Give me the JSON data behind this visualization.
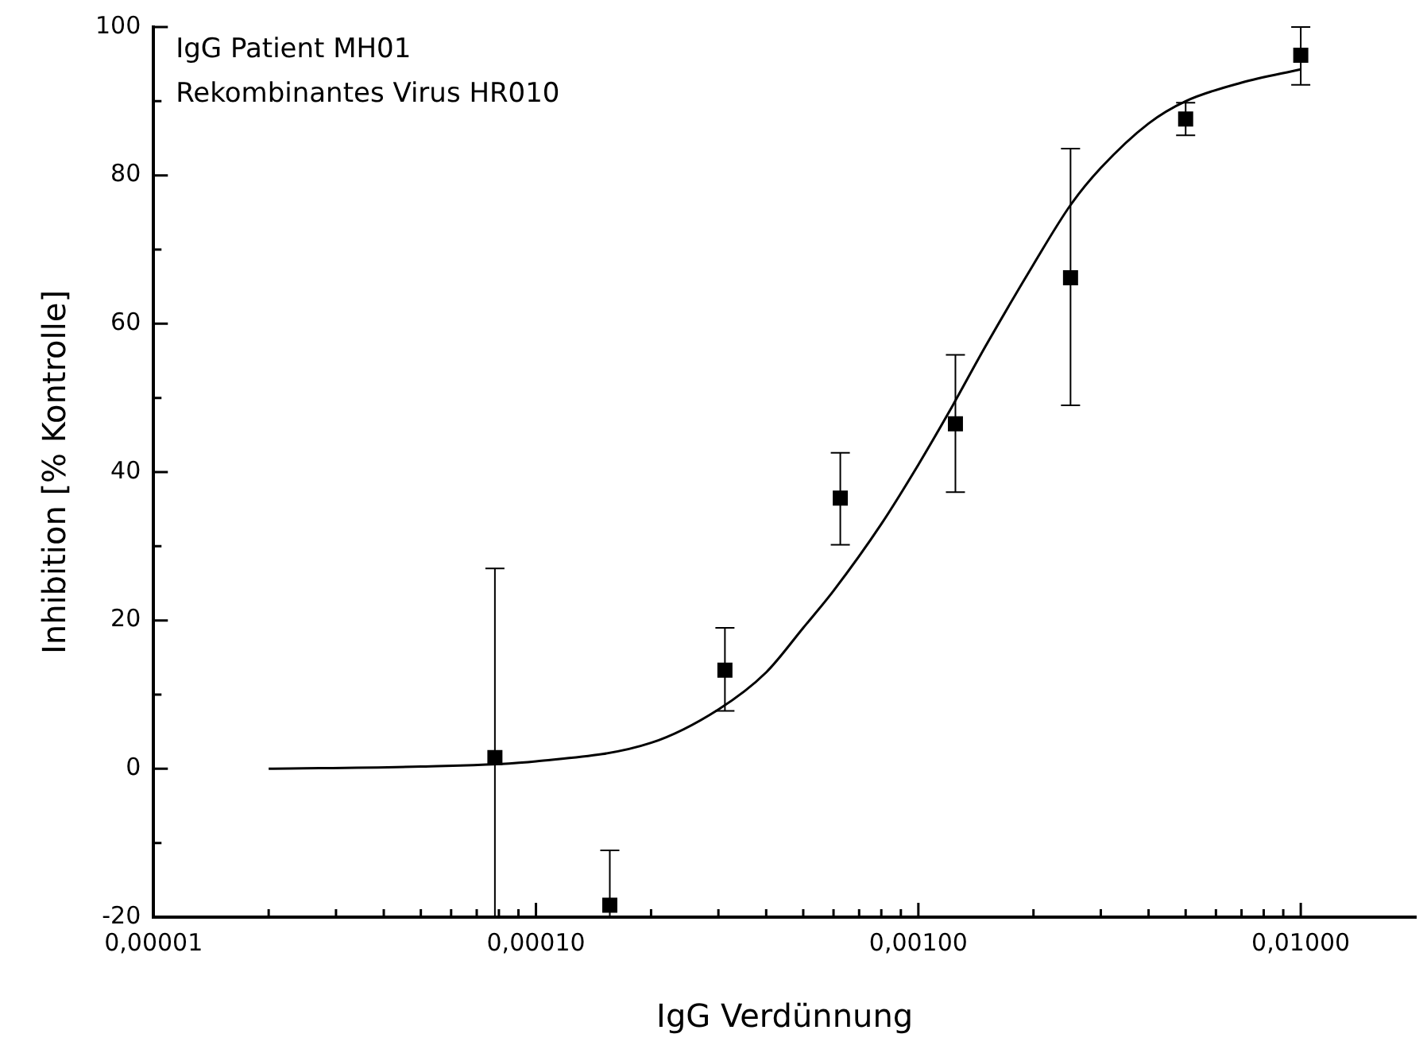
{
  "chart_data": {
    "type": "scatter",
    "xlabel": "IgG Verdünnung",
    "ylabel": "Inhibition [% Kontrolle]",
    "annotations": [
      "IgG Patient MH01",
      "Rekombinantes Virus HR010"
    ],
    "log": "x",
    "grid": false,
    "legend": false,
    "marker": "square",
    "xlim": [
      1e-05,
      0.02
    ],
    "ylim": [
      -20,
      100
    ],
    "xticks": [
      {
        "value": 1e-05,
        "label": "0,00001"
      },
      {
        "value": 2e-05,
        "label": null
      },
      {
        "value": 3e-05,
        "label": null
      },
      {
        "value": 4e-05,
        "label": null
      },
      {
        "value": 5e-05,
        "label": null
      },
      {
        "value": 6e-05,
        "label": null
      },
      {
        "value": 7e-05,
        "label": null
      },
      {
        "value": 8e-05,
        "label": null
      },
      {
        "value": 9e-05,
        "label": null
      },
      {
        "value": 0.0001,
        "label": "0,00010"
      },
      {
        "value": 0.0002,
        "label": null
      },
      {
        "value": 0.0003,
        "label": null
      },
      {
        "value": 0.0004,
        "label": null
      },
      {
        "value": 0.0005,
        "label": null
      },
      {
        "value": 0.0006,
        "label": null
      },
      {
        "value": 0.0007,
        "label": null
      },
      {
        "value": 0.0008,
        "label": null
      },
      {
        "value": 0.0009,
        "label": null
      },
      {
        "value": 0.001,
        "label": "0,00100"
      },
      {
        "value": 0.002,
        "label": null
      },
      {
        "value": 0.003,
        "label": null
      },
      {
        "value": 0.004,
        "label": null
      },
      {
        "value": 0.005,
        "label": null
      },
      {
        "value": 0.006,
        "label": null
      },
      {
        "value": 0.007,
        "label": null
      },
      {
        "value": 0.008,
        "label": null
      },
      {
        "value": 0.009,
        "label": null
      },
      {
        "value": 0.01,
        "label": "0,01000"
      }
    ],
    "yticks": [
      -20,
      {
        "value": -10,
        "label": null
      },
      0,
      {
        "value": 10,
        "label": null
      },
      20,
      {
        "value": 30,
        "label": null
      },
      40,
      {
        "value": 50,
        "label": null
      },
      60,
      {
        "value": 70,
        "label": null
      },
      80,
      {
        "value": 90,
        "label": null
      },
      100
    ],
    "series": [
      {
        "color": "#000000",
        "x": [
          7.81e-05,
          0.000156,
          0.000312,
          0.000625,
          0.00125,
          0.0025,
          0.005,
          0.01
        ],
        "values": [
          1.5,
          -18.4,
          13.3,
          36.5,
          46.5,
          66.2,
          87.6,
          96.2
        ],
        "errors": [
          [
            -20,
            27
          ],
          [
            -20,
            -11
          ],
          [
            7.8,
            19
          ],
          [
            30.2,
            42.6
          ],
          [
            37.3,
            55.8
          ],
          [
            49,
            83.6
          ],
          [
            85.4,
            89.8
          ],
          [
            92.2,
            100
          ]
        ]
      },
      {
        "type": "line",
        "color": "#000000",
        "marker": "none",
        "x": [
          2e-05,
          5e-05,
          0.0001,
          0.0002,
          0.0003,
          0.0004,
          0.0005,
          0.0006,
          0.0008,
          0.001,
          0.0012,
          0.0015,
          0.002,
          0.0025,
          0.003,
          0.004,
          0.005,
          0.007,
          0.01
        ],
        "values": [
          0,
          0.3,
          1,
          3.5,
          8,
          13,
          19,
          24,
          33,
          41,
          48,
          57,
          68,
          76,
          81,
          87,
          90,
          92.5,
          94.3
        ]
      }
    ]
  }
}
